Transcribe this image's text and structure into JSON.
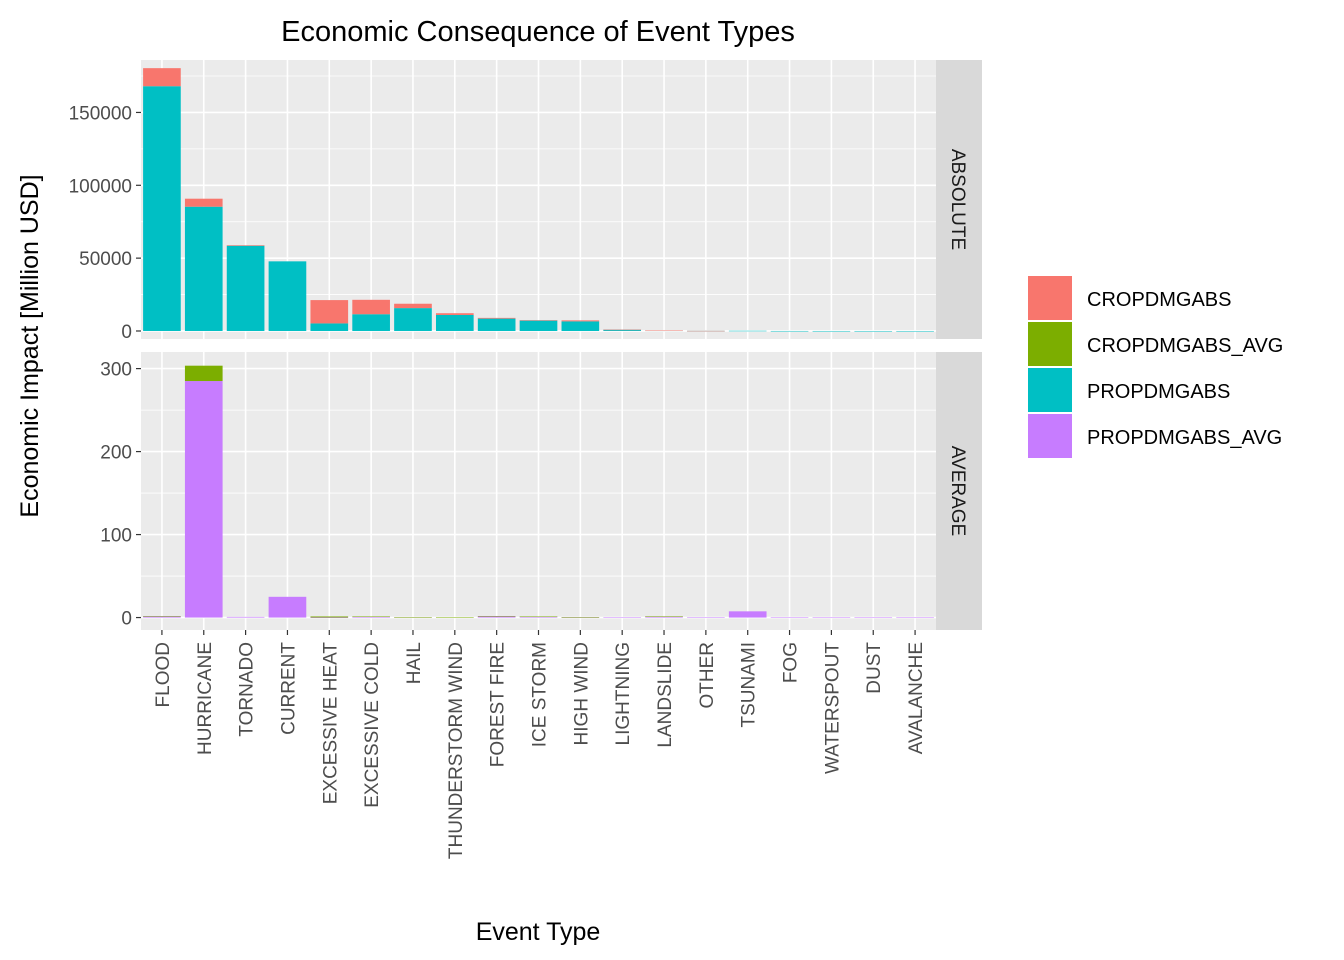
{
  "chart_data": {
    "type": "bar",
    "stacked": true,
    "title": "Economic Consequence of Event Types",
    "xlabel": "Event Type",
    "ylabel": "Economic Impact [Million USD]",
    "grid": true,
    "legend_position": "right",
    "categories": [
      "FLOOD",
      "HURRICANE",
      "TORNADO",
      "CURRENT",
      "EXCESSIVE HEAT",
      "EXCESSIVE COLD",
      "HAIL",
      "THUNDERSTORM WIND",
      "FOREST FIRE",
      "ICE STORM",
      "HIGH WIND",
      "LIGHTNING",
      "LANDSLIDE",
      "OTHER",
      "TSUNAMI",
      "FOG",
      "WATERSPOUT",
      "DUST",
      "AVALANCHE"
    ],
    "legend": [
      {
        "name": "CROPDMGABS",
        "color": "#F8766D"
      },
      {
        "name": "CROPDMGABS_AVG",
        "color": "#7CAE00"
      },
      {
        "name": "PROPDMGABS",
        "color": "#00BFC4"
      },
      {
        "name": "PROPDMGABS_AVG",
        "color": "#C77CFF"
      }
    ],
    "facets": [
      {
        "label": "ABSOLUTE",
        "ylim": [
          -5500,
          186000
        ],
        "yticks": [
          0,
          50000,
          100000,
          150000
        ],
        "series": [
          {
            "name": "PROPDMGABS",
            "color": "#00BFC4",
            "values": [
              168000,
              85300,
              58500,
              47800,
              5200,
              11500,
              15700,
              11000,
              8500,
              7200,
              6600,
              900,
              300,
              100,
              150,
              20,
              10,
              5,
              5
            ]
          },
          {
            "name": "CROPDMGABS",
            "color": "#F8766D",
            "values": [
              12400,
              5500,
              400,
              0,
              16000,
              9900,
              3000,
              1200,
              500,
              200,
              700,
              10,
              20,
              10,
              0,
              0,
              0,
              0,
              0
            ]
          }
        ]
      },
      {
        "label": "AVERAGE",
        "ylim": [
          -15,
          320
        ],
        "yticks": [
          0,
          100,
          200,
          300
        ],
        "series": [
          {
            "name": "PROPDMGABS_AVG",
            "color": "#C77CFF",
            "values": [
              1.5,
              285,
              0.8,
              25,
              0.1,
              0.8,
              0.1,
              0.05,
              1.8,
              1.2,
              0.3,
              0.1,
              1.3,
              0.2,
              7.5,
              0.1,
              0.05,
              0.05,
              0.05
            ]
          },
          {
            "name": "CROPDMGABS_AVG",
            "color": "#7CAE00",
            "values": [
              0.2,
              18.5,
              0,
              0,
              1.2,
              0.5,
              0.05,
              0.01,
              0.05,
              0.05,
              0.01,
              0,
              0.05,
              0,
              0,
              0,
              0,
              0,
              0
            ]
          }
        ]
      }
    ]
  }
}
